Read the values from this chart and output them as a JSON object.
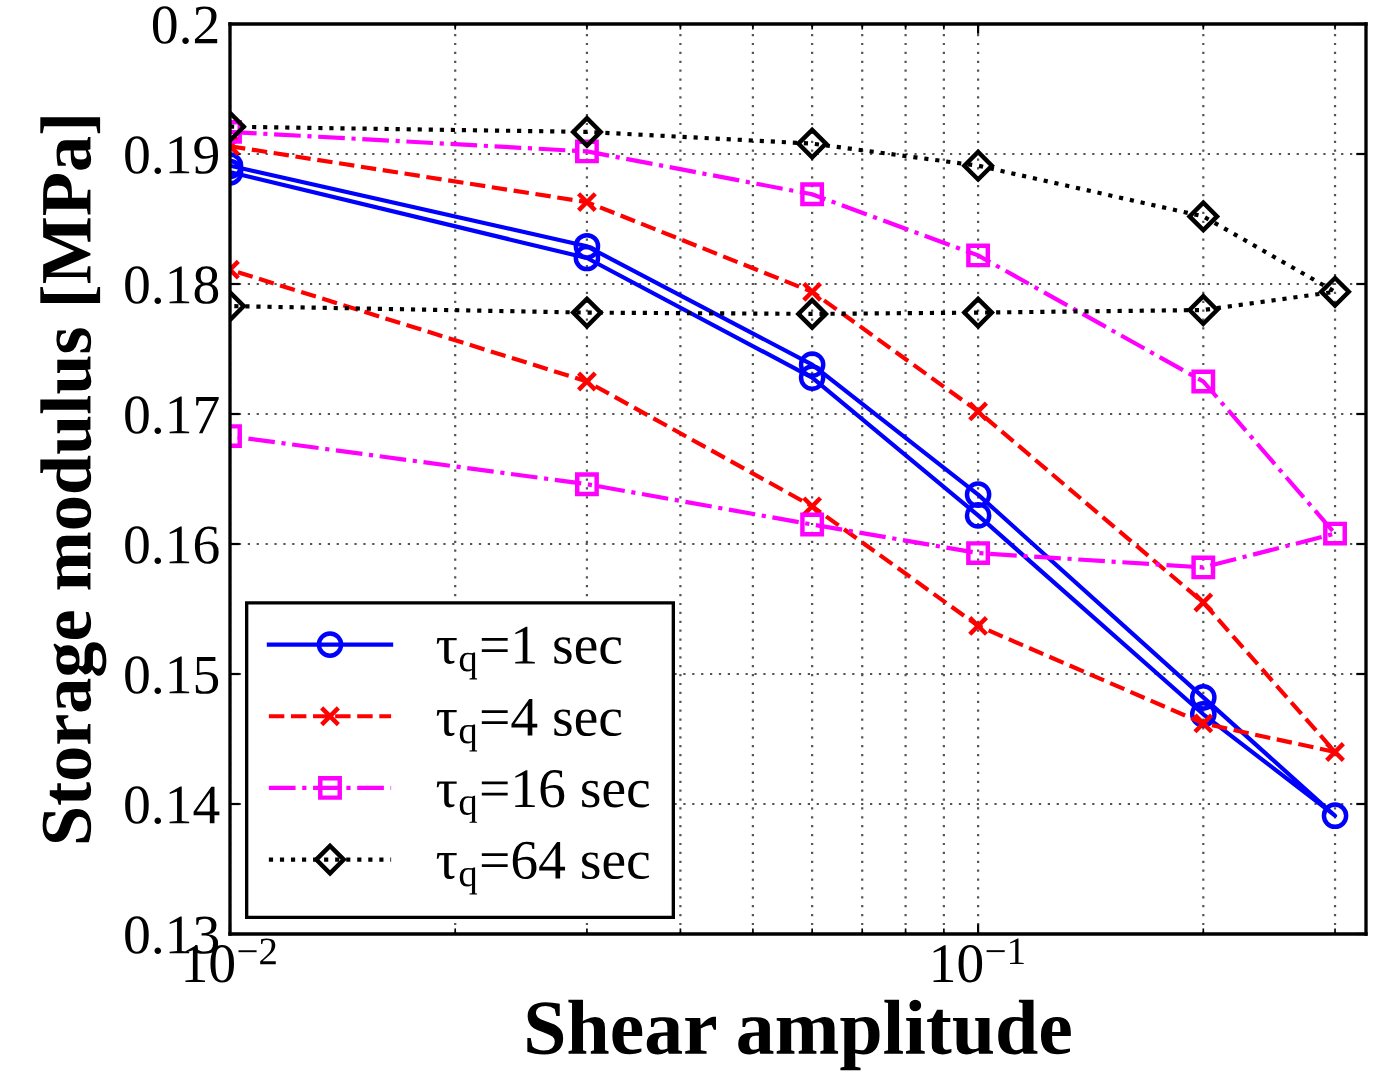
{
  "chart_data": {
    "type": "line",
    "xlabel": "Shear amplitude",
    "ylabel": "Storage modulus [MPa]",
    "x": [
      0.01,
      0.03,
      0.06,
      0.1,
      0.2,
      0.3,
      0.2,
      0.1,
      0.06,
      0.03,
      0.01
    ],
    "series": [
      {
        "name": "τ$_{q}$=1 sec",
        "color": "#0000ff",
        "marker": "circle",
        "line_style": "solid",
        "values": [
          0.1891,
          0.1829,
          0.1738,
          0.1638,
          0.1482,
          0.1391,
          0.1469,
          0.1622,
          0.1728,
          0.182,
          0.1886
        ]
      },
      {
        "name": "τ$_{q}$=4 sec",
        "color": "#ff0000",
        "marker": "cross",
        "line_style": "dashed",
        "values": [
          0.1906,
          0.1863,
          0.1794,
          0.1702,
          0.1555,
          0.144,
          0.1462,
          0.1537,
          0.1629,
          0.1725,
          0.1811
        ]
      },
      {
        "name": "τ$_{q}$=16 sec",
        "color": "#ff00ff",
        "marker": "square",
        "line_style": "dashdot",
        "values": [
          0.1917,
          0.1902,
          0.1869,
          0.1822,
          0.1725,
          0.1608,
          0.1582,
          0.1593,
          0.1615,
          0.1646,
          0.1683
        ]
      },
      {
        "name": "τ$_{q}$=64 sec",
        "color": "#000000",
        "marker": "diamond",
        "line_style": "dotted",
        "values": [
          0.1921,
          0.1917,
          0.1908,
          0.1891,
          0.1852,
          0.1794,
          0.178,
          0.1778,
          0.1777,
          0.1778,
          0.1783
        ]
      }
    ],
    "log": "x",
    "xlim": [
      0.01,
      0.33
    ],
    "xticks": [
      {
        "value": 0.01,
        "label": "10$^{−2}$"
      },
      {
        "value": 0.1,
        "label": "10$^{−1}$"
      }
    ],
    "ylim": [
      0.13,
      0.2
    ],
    "yticks": [
      0.13,
      0.14,
      0.15,
      0.16,
      0.17,
      0.18,
      0.19,
      0.2
    ],
    "grid": true,
    "legend": "bottom left"
  }
}
